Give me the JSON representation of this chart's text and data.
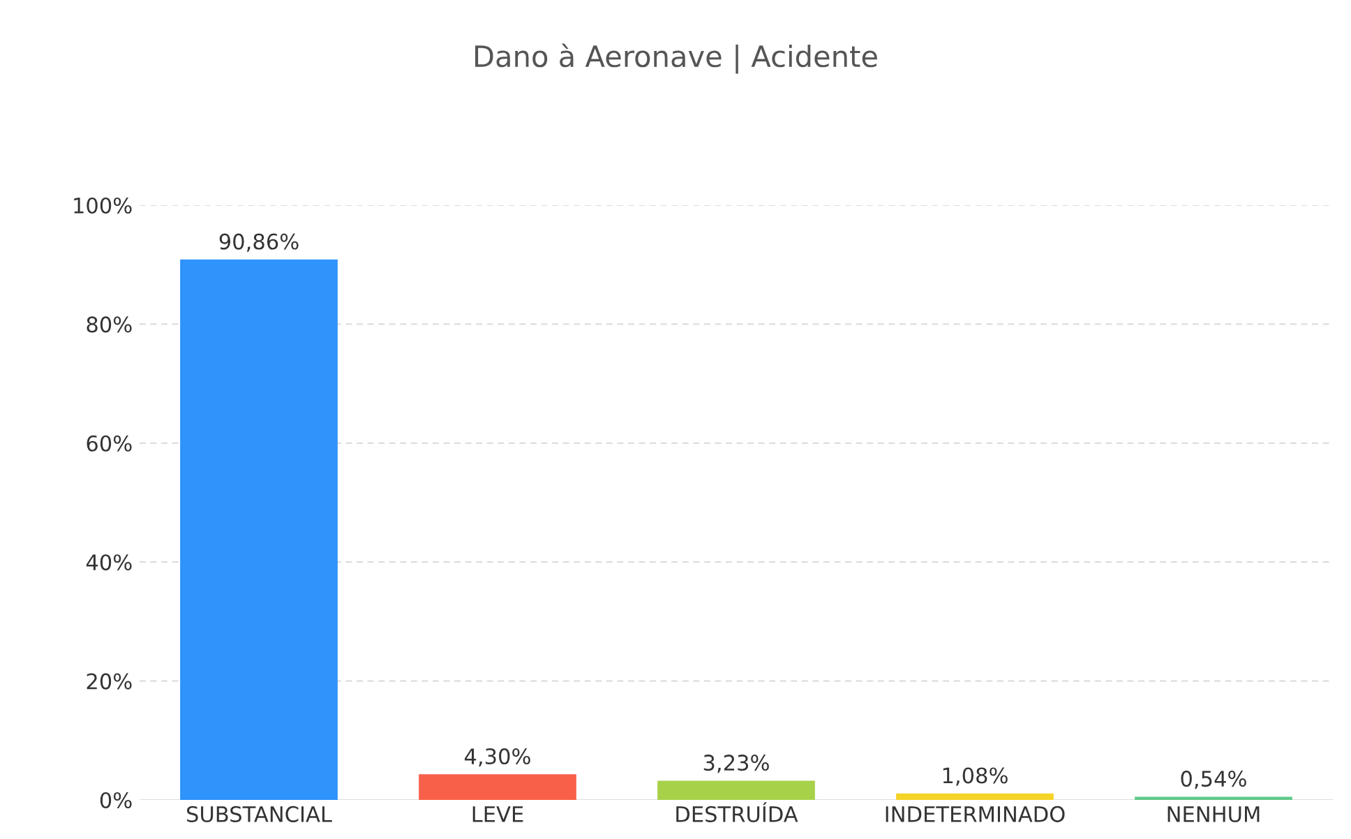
{
  "chart_data": {
    "type": "bar",
    "title": "Dano à Aeronave | Acidente",
    "categories": [
      "SUBSTANCIAL",
      "LEVE",
      "DESTRUÍDA",
      "INDETERMINADO",
      "NENHUM"
    ],
    "values": [
      90.86,
      4.3,
      3.23,
      1.08,
      0.54
    ],
    "colors": [
      "#2e93fa",
      "#f9604a",
      "#a8d14a",
      "#f5d327",
      "#5fc98a"
    ],
    "value_labels": [
      "90,86%",
      "4,30%",
      "3,23%",
      "1,08%",
      "0,54%"
    ],
    "ylim": [
      0,
      100
    ],
    "yticks": [
      {
        "value": 0,
        "label": "0%"
      },
      {
        "value": 20,
        "label": "20%"
      },
      {
        "value": 40,
        "label": "40%"
      },
      {
        "value": 60,
        "label": "60%"
      },
      {
        "value": 80,
        "label": "80%"
      },
      {
        "value": 100,
        "label": "100%"
      }
    ],
    "grid": "y"
  }
}
